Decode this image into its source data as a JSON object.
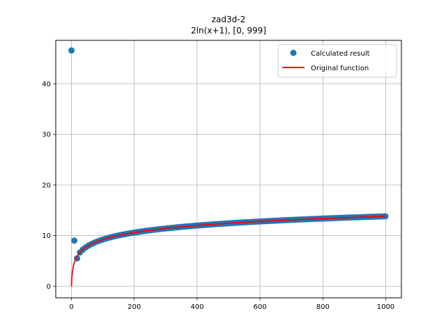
{
  "chart_data": {
    "type": "scatter",
    "title": "zad3d-2",
    "subtitle": "2ln(x+1), [0, 999]",
    "xlabel": "",
    "ylabel": "",
    "xlim": [
      -50,
      1050
    ],
    "ylim": [
      -2.3,
      48.6
    ],
    "xticks": [
      0,
      200,
      400,
      600,
      800,
      1000
    ],
    "yticks": [
      0,
      10,
      20,
      30,
      40
    ],
    "xtick_labels": [
      "0",
      "200",
      "400",
      "600",
      "800",
      "1000"
    ],
    "ytick_labels": [
      "0",
      "10",
      "20",
      "30",
      "40"
    ],
    "grid": true,
    "legend_position": "top-right",
    "series": [
      {
        "name": "Calculated result",
        "kind": "scatter",
        "color": "#1f77b4",
        "formula": "2*ln(x+1)",
        "x_range": [
          0,
          999
        ],
        "step": 9,
        "outliers": [
          {
            "x": 0,
            "y": 46.6
          },
          {
            "x": 9,
            "y": 9.0
          },
          {
            "x": 18,
            "y": 5.5
          }
        ]
      },
      {
        "name": "Original function",
        "kind": "line",
        "color": "#ff0000",
        "formula": "2*ln(x+1)",
        "x_range": [
          0,
          999
        ]
      }
    ]
  }
}
